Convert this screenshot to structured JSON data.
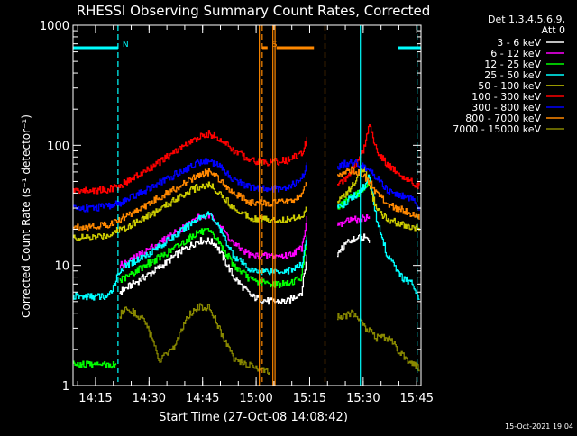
{
  "chart_data": {
    "type": "line",
    "title": "RHESSI Observing Summary Count Rates, Corrected",
    "xlabel": "Start Time (27-Oct-08 14:08:42)",
    "ylabel": "Corrected Count Rate (s⁻¹ detector⁻¹)",
    "yscale": "log",
    "ylim": [
      1,
      1000
    ],
    "xlim_minutes": [
      0,
      97.5
    ],
    "x_ticks": [
      {
        "label": "14:15",
        "t": 6.3
      },
      {
        "label": "14:30",
        "t": 21.3
      },
      {
        "label": "14:45",
        "t": 36.3
      },
      {
        "label": "15:00",
        "t": 51.3
      },
      {
        "label": "15:15",
        "t": 66.3
      },
      {
        "label": "15:30",
        "t": 81.3
      },
      {
        "label": "15:45",
        "t": 96.3
      }
    ],
    "y_ticks": [
      {
        "label": "1",
        "v": 1
      },
      {
        "label": "10",
        "v": 10
      },
      {
        "label": "100",
        "v": 100
      },
      {
        "label": "1000",
        "v": 1000
      }
    ],
    "legend": {
      "position": "right",
      "header": [
        "Det 1,3,4,5,6,9,",
        "Att 0"
      ],
      "entries": [
        {
          "label": "3 - 6 keV",
          "color": "#ffffff"
        },
        {
          "label": "6 - 12 keV",
          "color": "#ff00ff"
        },
        {
          "label": "12 - 25 keV",
          "color": "#00ff00"
        },
        {
          "label": "25 - 50 keV",
          "color": "#00ffff"
        },
        {
          "label": "50 - 100 keV",
          "color": "#cccc00"
        },
        {
          "label": "100 - 300 keV",
          "color": "#ff0000"
        },
        {
          "label": "300 - 800 keV",
          "color": "#0000ff"
        },
        {
          "label": "800 - 7000 keV",
          "color": "#ff8800"
        },
        {
          "label": "7000 - 15000 keV",
          "color": "#888800"
        }
      ]
    },
    "series": [
      {
        "name": "3 - 6 keV",
        "color": "#000000",
        "x": [
          13,
          15,
          20,
          25,
          30,
          35,
          38,
          40,
          45,
          50,
          55,
          60,
          64,
          65.5
        ],
        "y": [
          6,
          6.5,
          8,
          10,
          13,
          16,
          16,
          15,
          8,
          5.5,
          5,
          5,
          6,
          12
        ]
      },
      {
        "name": "6 - 12 keV",
        "color": "#ff00ff",
        "x": [
          13,
          15,
          20,
          25,
          30,
          35,
          38,
          40,
          45,
          50,
          55,
          60,
          64,
          65.5
        ],
        "y": [
          10,
          10.5,
          13,
          16,
          20,
          25,
          26,
          24,
          15,
          12,
          12,
          12,
          14,
          25
        ]
      },
      {
        "name": "12 - 25 keV",
        "color": "#00ff00",
        "x": [
          13,
          15,
          20,
          25,
          30,
          35,
          38,
          40,
          45,
          50,
          55,
          60,
          64,
          65.5
        ],
        "y": [
          7.5,
          8,
          10,
          12,
          15,
          19,
          19,
          17,
          10,
          7.5,
          7,
          7,
          8,
          18
        ]
      },
      {
        "name": "25 - 50 keV",
        "color": "#00ffff",
        "x": [
          0,
          5,
          10,
          13,
          15,
          20,
          25,
          30,
          35,
          38,
          40,
          45,
          50,
          55,
          60,
          64,
          65.5
        ],
        "y": [
          5.5,
          5.5,
          5.5,
          9,
          10,
          12,
          15,
          19,
          25,
          27,
          23,
          12,
          9,
          9,
          9,
          10,
          18
        ]
      },
      {
        "name": "50 - 100 keV",
        "color": "#cccc00",
        "x": [
          0,
          5,
          10,
          13,
          15,
          20,
          25,
          30,
          35,
          38,
          40,
          45,
          50,
          55,
          60,
          64,
          65.5
        ],
        "y": [
          17,
          17,
          18,
          20,
          21,
          25,
          30,
          38,
          45,
          47,
          43,
          30,
          25,
          24,
          24,
          26,
          30
        ]
      },
      {
        "name": "100 - 300 keV",
        "color": "#ff0000",
        "x": [
          0,
          5,
          10,
          13,
          15,
          20,
          25,
          30,
          35,
          38,
          40,
          45,
          50,
          55,
          60,
          64,
          65.5
        ],
        "y": [
          42,
          42,
          43,
          46,
          50,
          60,
          75,
          95,
          115,
          125,
          120,
          90,
          75,
          72,
          75,
          85,
          110
        ]
      },
      {
        "name": "300 - 800 keV",
        "color": "#0000ff",
        "x": [
          0,
          5,
          10,
          13,
          15,
          20,
          25,
          30,
          35,
          38,
          40,
          45,
          50,
          55,
          60,
          64,
          65.5
        ],
        "y": [
          30,
          30,
          31,
          33,
          35,
          42,
          50,
          60,
          72,
          75,
          70,
          52,
          44,
          43,
          45,
          52,
          70
        ]
      },
      {
        "name": "800 - 7000 keV",
        "color": "#ff8800",
        "x": [
          0,
          5,
          10,
          13,
          15,
          20,
          25,
          30,
          35,
          38,
          40,
          45,
          50,
          55,
          60,
          64,
          65.5
        ],
        "y": [
          21,
          21,
          22,
          24,
          26,
          31,
          38,
          46,
          56,
          60,
          56,
          40,
          33,
          33,
          34,
          38,
          50
        ]
      },
      {
        "name": "7000 - 15000 keV",
        "color": "#888800",
        "x": [
          13,
          15,
          20,
          22,
          24,
          28,
          30,
          32,
          35,
          38,
          40,
          42,
          45,
          48,
          52,
          55
        ],
        "y": [
          3.8,
          4.5,
          3.5,
          2.5,
          1.6,
          2,
          2.8,
          3.8,
          4.5,
          4.5,
          3.5,
          2.5,
          1.7,
          1.5,
          1.4,
          1.3
        ]
      },
      {
        "name": "12 - 25 keV (low)",
        "color": "#00ff00",
        "x": [
          0,
          4,
          8,
          12
        ],
        "y": [
          1.5,
          1.5,
          1.5,
          1.5
        ]
      },
      {
        "name": "3 - 6 keV (post)",
        "color": "#000000",
        "x": [
          74,
          76,
          78,
          80,
          81.5,
          83
        ],
        "y": [
          12,
          15,
          16,
          17,
          17,
          15
        ]
      },
      {
        "name": "6 - 12 keV (post)",
        "color": "#ff00ff",
        "x": [
          74,
          76,
          78,
          80,
          81.5,
          83
        ],
        "y": [
          22,
          23,
          24,
          24,
          25,
          25
        ]
      },
      {
        "name": "12 - 25 keV (post)",
        "color": "#00ff00",
        "x": [
          74,
          76,
          78,
          80,
          81.5,
          83
        ],
        "y": [
          30,
          33,
          37,
          40,
          44,
          50
        ]
      },
      {
        "name": "25 - 50 keV (post)",
        "color": "#00ffff",
        "x": [
          74,
          76,
          78,
          80,
          81.5,
          83,
          85,
          88,
          92,
          95,
          97
        ],
        "y": [
          30,
          33,
          37,
          40,
          45,
          55,
          25,
          12,
          8,
          7,
          5
        ]
      },
      {
        "name": "50 - 100 keV (post)",
        "color": "#cccc00",
        "x": [
          74,
          76,
          78,
          80,
          81.5,
          83,
          85,
          88,
          92,
          95,
          97
        ],
        "y": [
          34,
          38,
          45,
          55,
          65,
          45,
          30,
          24,
          22,
          21,
          20
        ]
      },
      {
        "name": "100 - 300 keV (post)",
        "color": "#ff0000",
        "x": [
          74,
          76,
          78,
          80,
          81.5,
          83,
          85,
          88,
          92,
          95,
          97
        ],
        "y": [
          45,
          52,
          62,
          75,
          95,
          145,
          90,
          70,
          55,
          50,
          45
        ]
      },
      {
        "name": "300 - 800 keV (post)",
        "color": "#0000ff",
        "x": [
          74,
          76,
          78,
          80,
          81.5,
          83,
          85,
          88,
          92,
          95,
          97
        ],
        "y": [
          65,
          70,
          72,
          70,
          65,
          60,
          55,
          42,
          38,
          36,
          30
        ]
      },
      {
        "name": "800 - 7000 keV (post)",
        "color": "#ff8800",
        "x": [
          74,
          76,
          78,
          80,
          81.5,
          83,
          85,
          88,
          92,
          95,
          97
        ],
        "y": [
          55,
          60,
          62,
          60,
          55,
          50,
          40,
          32,
          29,
          27,
          25
        ]
      },
      {
        "name": "7000 - 15000 keV (post)",
        "color": "#888800",
        "x": [
          74,
          76,
          78,
          80,
          82,
          85,
          88,
          90,
          92,
          95,
          97
        ],
        "y": [
          3.8,
          3.8,
          4,
          3.5,
          3,
          2.5,
          2.5,
          2.2,
          1.8,
          1.5,
          1.4
        ]
      }
    ],
    "bars": [
      {
        "label": "N",
        "color": "#00ffff",
        "segments": [
          [
            0,
            12.6
          ],
          [
            91,
            97.5
          ]
        ],
        "level": 650
      },
      {
        "label": "S",
        "color": "#ff8800",
        "segments": [
          [
            53,
            54.5
          ],
          [
            57,
            67.5
          ]
        ],
        "level": 650
      }
    ],
    "vlines": [
      {
        "t": 12.6,
        "color": "#00ffff",
        "style": "dashed"
      },
      {
        "t": 80.5,
        "color": "#00ffff",
        "style": "solid"
      },
      {
        "t": 96.4,
        "color": "#00ffff",
        "style": "dashed"
      },
      {
        "t": 52.2,
        "color": "#ff8800",
        "style": "solid"
      },
      {
        "t": 53.0,
        "color": "#ff8800",
        "style": "dashed"
      },
      {
        "t": 56.0,
        "color": "#ff8800",
        "style": "solid"
      },
      {
        "t": 56.6,
        "color": "#ff8800",
        "style": "solid"
      },
      {
        "t": 70.6,
        "color": "#ff8800",
        "style": "dashed"
      }
    ]
  },
  "footer_date": "15-Oct-2021 19:04"
}
